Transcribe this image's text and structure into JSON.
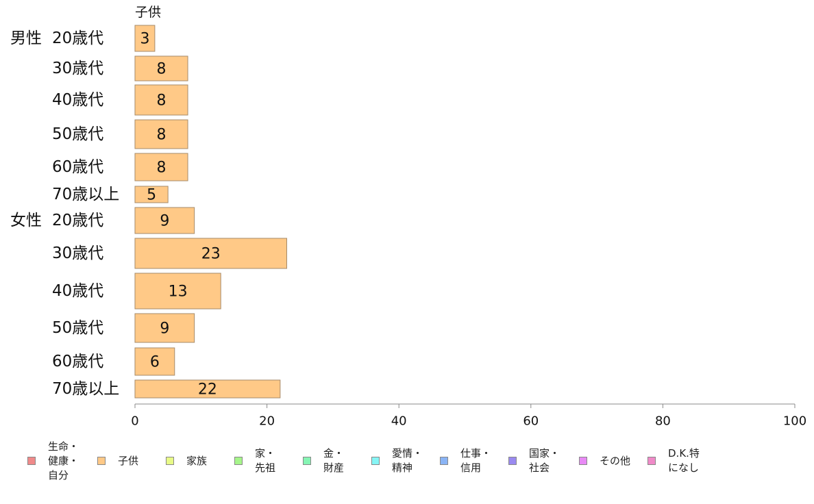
{
  "chart_data": {
    "type": "bar",
    "orientation": "horizontal",
    "series_label": "子供",
    "xlim": [
      0,
      100
    ],
    "xticks": [
      0,
      20,
      40,
      60,
      80,
      100
    ],
    "groups": [
      {
        "label": "男性",
        "categories": [
          "20歳代",
          "30歳代",
          "40歳代",
          "50歳代",
          "60歳代",
          "70歳以上"
        ],
        "values": [
          3,
          8,
          8,
          8,
          8,
          5
        ]
      },
      {
        "label": "女性",
        "categories": [
          "20歳代",
          "30歳代",
          "40歳代",
          "50歳代",
          "60歳代",
          "70歳以上"
        ],
        "values": [
          9,
          23,
          13,
          9,
          6,
          22
        ]
      }
    ],
    "bar_color": "#FFC987",
    "bar_border": "#A58A6A"
  },
  "legend": {
    "items": [
      {
        "label": "生命・\n健康・\n自分",
        "color": "#F08A8A"
      },
      {
        "label": "子供",
        "color": "#FFC987"
      },
      {
        "label": "家族",
        "color": "#E8FA87"
      },
      {
        "label": "家・\n先祖",
        "color": "#A6F58A"
      },
      {
        "label": "金・\n財産",
        "color": "#86F5B4"
      },
      {
        "label": "愛情・\n精神",
        "color": "#86F5F5"
      },
      {
        "label": "仕事・\n信用",
        "color": "#8AB4F5"
      },
      {
        "label": "国家・\n社会",
        "color": "#9A8AF0"
      },
      {
        "label": "その他",
        "color": "#E88AF5"
      },
      {
        "label": "D.K.特\nになし",
        "color": "#F08AC8"
      }
    ]
  }
}
